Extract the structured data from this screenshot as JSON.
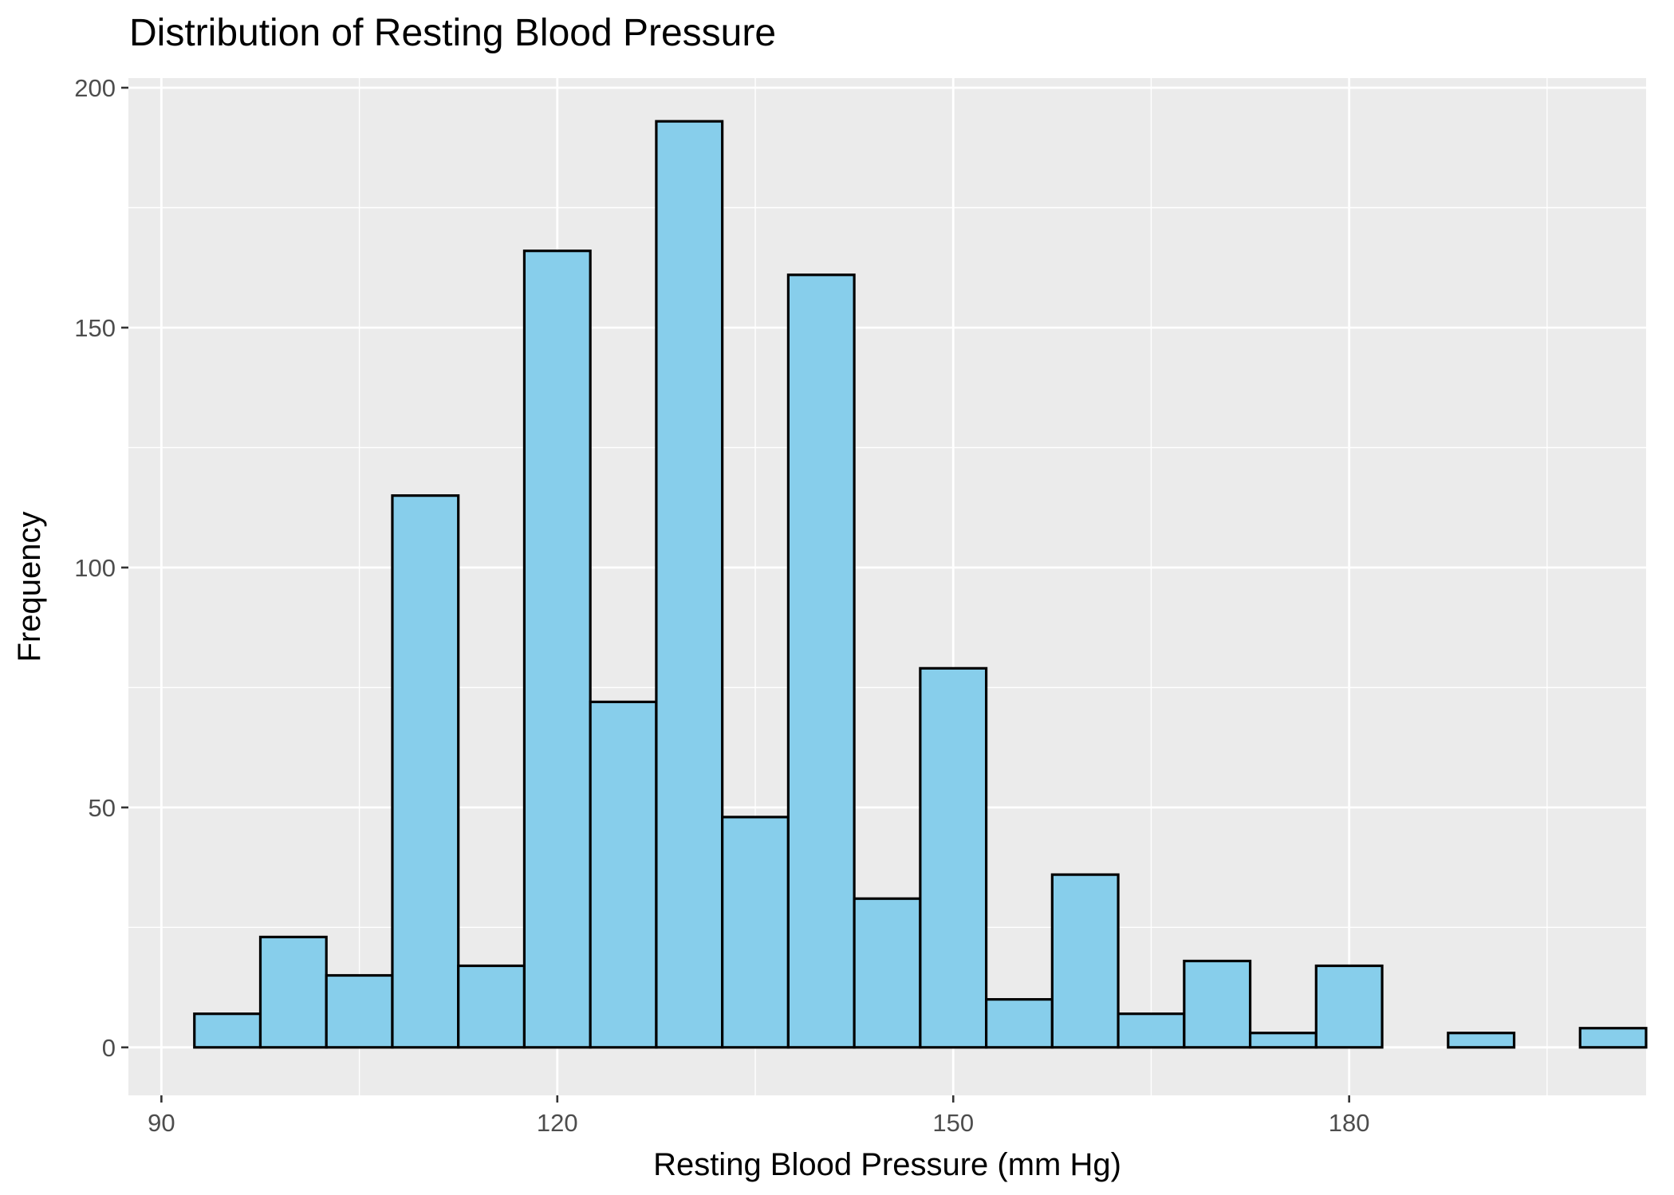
{
  "chart_data": {
    "type": "bar",
    "title": "Distribution of Resting Blood Pressure",
    "xlabel": "Resting Blood Pressure (mm Hg)",
    "ylabel": "Frequency",
    "x_ticks": [
      90,
      120,
      150,
      180
    ],
    "y_ticks": [
      0,
      50,
      100,
      150,
      200
    ],
    "xlim": [
      87.5,
      202.5
    ],
    "ylim": [
      -10,
      202
    ],
    "bin_width": 5,
    "bins": [
      {
        "start": 92.5,
        "end": 97.5,
        "count": 7
      },
      {
        "start": 97.5,
        "end": 102.5,
        "count": 23
      },
      {
        "start": 102.5,
        "end": 107.5,
        "count": 15
      },
      {
        "start": 107.5,
        "end": 112.5,
        "count": 115
      },
      {
        "start": 112.5,
        "end": 117.5,
        "count": 17
      },
      {
        "start": 117.5,
        "end": 122.5,
        "count": 166
      },
      {
        "start": 122.5,
        "end": 127.5,
        "count": 72
      },
      {
        "start": 127.5,
        "end": 132.5,
        "count": 193
      },
      {
        "start": 132.5,
        "end": 137.5,
        "count": 48
      },
      {
        "start": 137.5,
        "end": 142.5,
        "count": 161
      },
      {
        "start": 142.5,
        "end": 147.5,
        "count": 31
      },
      {
        "start": 147.5,
        "end": 152.5,
        "count": 79
      },
      {
        "start": 152.5,
        "end": 157.5,
        "count": 10
      },
      {
        "start": 157.5,
        "end": 162.5,
        "count": 36
      },
      {
        "start": 162.5,
        "end": 167.5,
        "count": 7
      },
      {
        "start": 167.5,
        "end": 172.5,
        "count": 18
      },
      {
        "start": 172.5,
        "end": 177.5,
        "count": 3
      },
      {
        "start": 177.5,
        "end": 182.5,
        "count": 17
      },
      {
        "start": 182.5,
        "end": 187.5,
        "count": 0
      },
      {
        "start": 187.5,
        "end": 192.5,
        "count": 3
      },
      {
        "start": 192.5,
        "end": 197.5,
        "count": 0
      },
      {
        "start": 197.5,
        "end": 202.5,
        "count": 4
      }
    ],
    "grid": true,
    "legend": "none",
    "colors": {
      "bar_fill": "#87CEEB",
      "bar_stroke": "#000000",
      "panel_background": "#EBEBEB",
      "grid_major": "#FFFFFF",
      "grid_minor": "#FFFFFF",
      "tick_text": "#4D4D4D"
    }
  }
}
